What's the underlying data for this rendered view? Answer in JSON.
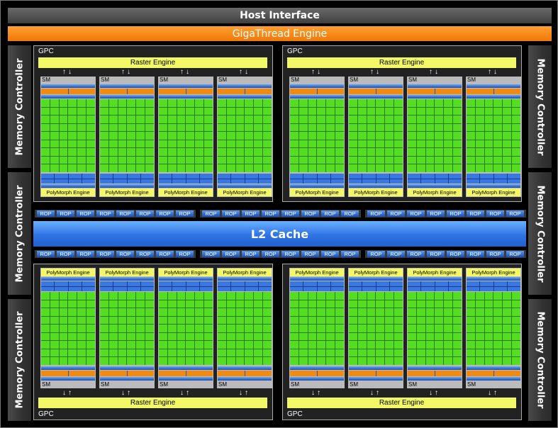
{
  "title_bar": {
    "host_interface": "Host Interface",
    "gigathread": "GigaThread Engine"
  },
  "memory_controller_label": "Memory Controller",
  "l2_cache": "L2 Cache",
  "gpc": {
    "label": "GPC",
    "raster_engine": "Raster Engine",
    "sm_label": "SM",
    "polymorph_engine": "PolyMorph Engine"
  },
  "rop": {
    "label": "ROP",
    "groups_per_row": 3,
    "units_per_group": 8
  },
  "counts": {
    "gpcs": 4,
    "sms_per_gpc": 4,
    "memory_controllers": 6
  },
  "colors": {
    "cores": "#55dd22",
    "engine": "#f2f866",
    "gigathread": "#f07808",
    "cache": "#2f74e4",
    "background": "#000000"
  }
}
